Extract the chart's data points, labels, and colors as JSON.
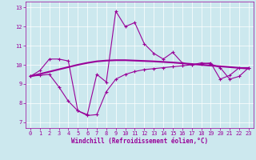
{
  "xlabel": "Windchill (Refroidissement éolien,°C)",
  "background_color": "#cce8ee",
  "line_color": "#990099",
  "grid_color": "#ffffff",
  "ylim": [
    6.7,
    13.3
  ],
  "xlim": [
    -0.5,
    23.5
  ],
  "yticks": [
    7,
    8,
    9,
    10,
    11,
    12,
    13
  ],
  "xticks": [
    0,
    1,
    2,
    3,
    4,
    5,
    6,
    7,
    8,
    9,
    10,
    11,
    12,
    13,
    14,
    15,
    16,
    17,
    18,
    19,
    20,
    21,
    22,
    23
  ],
  "line1_x": [
    0,
    1,
    2,
    3,
    4,
    5,
    6,
    7,
    8,
    9,
    10,
    11,
    12,
    13,
    14,
    15,
    16,
    17,
    18,
    19,
    20,
    21,
    22,
    23
  ],
  "line1_y": [
    9.4,
    9.7,
    10.3,
    10.3,
    10.2,
    7.6,
    7.4,
    9.5,
    9.1,
    12.8,
    12.0,
    12.2,
    11.1,
    10.6,
    10.3,
    10.65,
    10.1,
    10.0,
    10.1,
    10.05,
    9.85,
    9.25,
    9.4,
    9.85
  ],
  "line2_x": [
    0,
    1,
    2,
    3,
    4,
    5,
    6,
    7,
    8,
    9,
    10,
    11,
    12,
    13,
    14,
    15,
    16,
    17,
    18,
    19,
    20,
    21,
    22,
    23
  ],
  "line2_y": [
    9.4,
    9.52,
    9.64,
    9.76,
    9.88,
    10.0,
    10.1,
    10.18,
    10.22,
    10.24,
    10.24,
    10.22,
    10.2,
    10.18,
    10.15,
    10.12,
    10.08,
    10.04,
    10.0,
    9.96,
    9.92,
    9.88,
    9.84,
    9.8
  ],
  "line3_x": [
    0,
    1,
    2,
    3,
    4,
    5,
    6,
    7,
    8,
    9,
    10,
    11,
    12,
    13,
    14,
    15,
    16,
    17,
    18,
    19,
    20,
    21,
    22,
    23
  ],
  "line3_y": [
    9.4,
    9.45,
    9.5,
    8.85,
    8.1,
    7.6,
    7.35,
    7.4,
    8.6,
    9.25,
    9.5,
    9.65,
    9.75,
    9.8,
    9.85,
    9.9,
    9.95,
    10.0,
    10.05,
    10.1,
    9.25,
    9.45,
    9.85,
    9.85
  ],
  "xlabel_fontsize": 5.5,
  "tick_fontsize": 5,
  "linewidth1": 0.8,
  "linewidth2": 1.5,
  "linewidth3": 0.8,
  "markersize": 2.5
}
